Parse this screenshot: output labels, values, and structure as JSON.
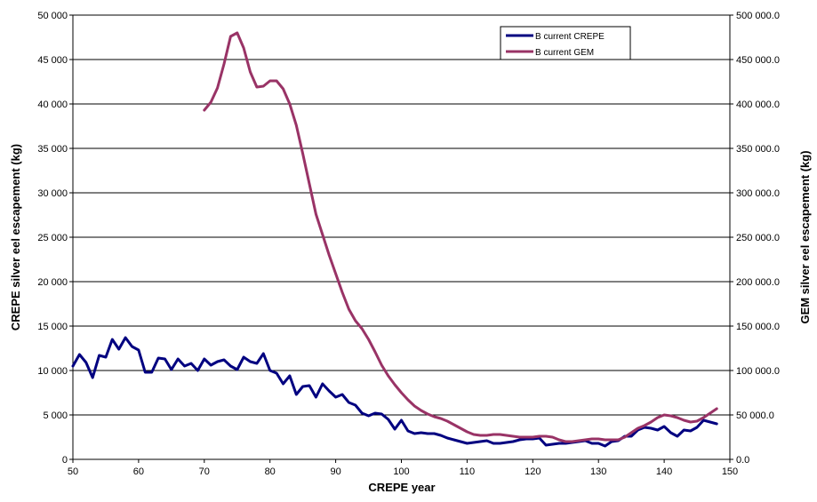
{
  "chart_data": {
    "type": "line",
    "title": "",
    "xlabel": "CREPE year",
    "ylabel": "CREPE silver eel escapement (kg)",
    "y2label": "GEM silver eel escapement (kg)",
    "xlim": [
      50,
      150
    ],
    "ylim": [
      0,
      50000
    ],
    "y2lim": [
      0,
      500000
    ],
    "grid": "horizontal",
    "legend_position": "top-right",
    "x_ticks": [
      "50",
      "60",
      "70",
      "80",
      "90",
      "100",
      "110",
      "120",
      "130",
      "140",
      "150"
    ],
    "y_ticks": [
      "0",
      "5 000",
      "10 000",
      "15 000",
      "20 000",
      "25 000",
      "30 000",
      "35 000",
      "40 000",
      "45 000",
      "50 000"
    ],
    "y2_ticks": [
      "0.0",
      "50 000.0",
      "100 000.0",
      "150 000.0",
      "200 000.0",
      "250 000.0",
      "300 000.0",
      "350 000.0",
      "400 000.0",
      "450 000.0",
      "500 000.0"
    ],
    "series": [
      {
        "name": "B current CREPE",
        "color": "#000080",
        "axis": "left",
        "x": [
          50,
          51,
          52,
          53,
          54,
          55,
          56,
          57,
          58,
          59,
          60,
          61,
          62,
          63,
          64,
          65,
          66,
          67,
          68,
          69,
          70,
          71,
          72,
          73,
          74,
          75,
          76,
          77,
          78,
          79,
          80,
          81,
          82,
          83,
          84,
          85,
          86,
          87,
          88,
          89,
          90,
          91,
          92,
          93,
          94,
          95,
          96,
          97,
          98,
          99,
          100,
          101,
          102,
          103,
          104,
          105,
          106,
          107,
          108,
          109,
          110,
          111,
          112,
          113,
          114,
          115,
          116,
          117,
          118,
          119,
          120,
          121,
          122,
          123,
          124,
          125,
          126,
          127,
          128,
          129,
          130,
          131,
          132,
          133,
          134,
          135,
          136,
          137,
          138,
          139,
          140,
          141,
          142,
          143,
          144,
          145,
          146,
          147,
          148
        ],
        "values": [
          10500,
          11800,
          10900,
          9200,
          11700,
          11500,
          13500,
          12400,
          13700,
          12700,
          12300,
          9800,
          9800,
          11400,
          11300,
          10100,
          11300,
          10500,
          10800,
          10000,
          11300,
          10600,
          11000,
          11200,
          10500,
          10100,
          11500,
          11000,
          10800,
          11900,
          10000,
          9700,
          8500,
          9400,
          7300,
          8200,
          8300,
          7000,
          8500,
          7700,
          7000,
          7300,
          6400,
          6100,
          5200,
          4900,
          5200,
          5100,
          4500,
          3400,
          4400,
          3200,
          2900,
          3000,
          2900,
          2900,
          2700,
          2400,
          2200,
          2000,
          1800,
          1900,
          2000,
          2100,
          1800,
          1800,
          1900,
          2000,
          2200,
          2300,
          2300,
          2400,
          1600,
          1700,
          1800,
          1800,
          1900,
          2000,
          2100,
          1800,
          1800,
          1500,
          2000,
          2100,
          2600,
          2600,
          3300,
          3600,
          3500,
          3300,
          3700,
          3000,
          2600,
          3300,
          3200,
          3600,
          4400,
          4200,
          4000
        ]
      },
      {
        "name": "B current GEM",
        "color": "#993366",
        "axis": "right",
        "x": [
          70,
          71,
          72,
          73,
          74,
          75,
          76,
          77,
          78,
          79,
          80,
          81,
          82,
          83,
          84,
          85,
          86,
          87,
          88,
          89,
          90,
          91,
          92,
          93,
          94,
          95,
          96,
          97,
          98,
          99,
          100,
          101,
          102,
          103,
          104,
          105,
          106,
          107,
          108,
          109,
          110,
          111,
          112,
          113,
          114,
          115,
          116,
          117,
          118,
          119,
          120,
          121,
          122,
          123,
          124,
          125,
          126,
          127,
          128,
          129,
          130,
          131,
          132,
          133,
          134,
          135,
          136,
          137,
          138,
          139,
          140,
          141,
          142,
          143,
          144,
          145,
          146,
          147,
          148
        ],
        "values": [
          393000,
          402000,
          418000,
          445000,
          476000,
          480000,
          463000,
          436000,
          419000,
          420000,
          426000,
          426000,
          417000,
          400000,
          376000,
          344000,
          310000,
          276000,
          253000,
          230000,
          209000,
          188000,
          169000,
          156000,
          147000,
          135000,
          121000,
          106000,
          94000,
          84000,
          75000,
          67000,
          60000,
          55000,
          51000,
          48000,
          46000,
          43000,
          39000,
          35000,
          31000,
          28000,
          27000,
          27000,
          28000,
          28000,
          27000,
          26000,
          25000,
          25000,
          25000,
          26000,
          26000,
          25000,
          22000,
          20000,
          20000,
          21000,
          22000,
          23000,
          23000,
          22000,
          22000,
          22000,
          25000,
          30000,
          35000,
          38000,
          42000,
          47000,
          50000,
          49000,
          47000,
          44000,
          42000,
          43000,
          47000,
          52000,
          57000
        ]
      }
    ]
  }
}
